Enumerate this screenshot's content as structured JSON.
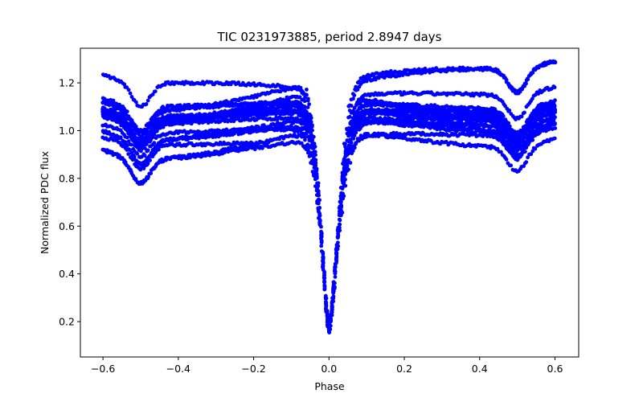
{
  "chart_data": {
    "type": "scatter",
    "title": "TIC 0231973885, period 2.8947 days",
    "xlabel": "Phase",
    "ylabel": "Normalized PDC flux",
    "xlim": [
      -0.66,
      0.663
    ],
    "ylim": [
      0.052,
      1.345
    ],
    "xticks": [
      -0.6,
      -0.4,
      -0.2,
      0.0,
      0.2,
      0.4,
      0.6
    ],
    "xtick_labels": [
      "−0.6",
      "−0.4",
      "−0.2",
      "0.0",
      "0.2",
      "0.4",
      "0.6"
    ],
    "yticks": [
      0.2,
      0.4,
      0.6,
      0.8,
      1.0,
      1.2
    ],
    "ytick_labels": [
      "0.2",
      "0.4",
      "0.6",
      "0.8",
      "1.0",
      "1.2"
    ],
    "grid": false,
    "legend": null,
    "marker_color": "#0000ff",
    "marker_size": 4,
    "description": "Phase-folded eclipsing-binary light curve: many overlapping traces with baseline flux ~0.85-1.28, a secondary dip near phase ±0.5 (~0.8-1.0) and a deep primary eclipse at phase 0.0 reaching ~0.11.",
    "key_points": [
      {
        "phase": -0.6,
        "flux_range": [
          0.97,
          1.28
        ]
      },
      {
        "phase": -0.5,
        "flux_range": [
          0.79,
          1.05
        ]
      },
      {
        "phase": -0.4,
        "flux_range": [
          0.88,
          1.17
        ]
      },
      {
        "phase": -0.2,
        "flux_range": [
          0.86,
          1.2
        ]
      },
      {
        "phase": -0.06,
        "flux_range": [
          1.0,
          1.21
        ]
      },
      {
        "phase": 0.0,
        "flux_range": [
          0.11,
          0.3
        ]
      },
      {
        "phase": 0.08,
        "flux_range": [
          0.92,
          1.23
        ]
      },
      {
        "phase": 0.2,
        "flux_range": [
          0.9,
          1.23
        ]
      },
      {
        "phase": 0.4,
        "flux_range": [
          0.96,
          1.28
        ]
      },
      {
        "phase": 0.5,
        "flux_range": [
          0.79,
          1.05
        ]
      },
      {
        "phase": 0.6,
        "flux_range": [
          0.88,
          1.18
        ]
      }
    ],
    "traces": [
      {
        "offset": 0.0,
        "tilt": 0.0,
        "extent": [
          -0.6,
          0.6
        ]
      },
      {
        "offset": 0.03,
        "tilt": 0.02,
        "extent": [
          -0.6,
          0.6
        ]
      },
      {
        "offset": -0.03,
        "tilt": -0.02,
        "extent": [
          -0.6,
          0.6
        ]
      },
      {
        "offset": 0.06,
        "tilt": 0.05,
        "extent": [
          -0.6,
          0.6
        ]
      },
      {
        "offset": -0.05,
        "tilt": 0.03,
        "extent": [
          -0.6,
          0.6
        ]
      },
      {
        "offset": 0.02,
        "tilt": -0.04,
        "extent": [
          -0.6,
          0.6
        ]
      },
      {
        "offset": -0.02,
        "tilt": 0.06,
        "extent": [
          -0.6,
          0.6
        ]
      },
      {
        "offset": 0.04,
        "tilt": -0.01,
        "extent": [
          -0.6,
          0.6
        ]
      },
      {
        "offset": 0.01,
        "tilt": 0.01,
        "extent": [
          -0.6,
          0.6
        ]
      },
      {
        "offset": -0.01,
        "tilt": -0.03,
        "extent": [
          -0.6,
          0.6
        ]
      },
      {
        "offset": 0.13,
        "tilt": 0.09,
        "extent": [
          -0.6,
          0.6
        ]
      },
      {
        "offset": 0.1,
        "tilt": 0.12,
        "extent": [
          -0.6,
          0.6
        ]
      },
      {
        "offset": -0.08,
        "tilt": -0.03,
        "extent": [
          -0.6,
          0.6
        ]
      },
      {
        "offset": -0.11,
        "tilt": 0.05,
        "extent": [
          -0.6,
          0.6
        ]
      },
      {
        "offset": -0.15,
        "tilt": -0.05,
        "extent": [
          -0.6,
          -0.2
        ]
      },
      {
        "offset": 0.08,
        "tilt": -0.08,
        "extent": [
          -0.6,
          0.6
        ]
      },
      {
        "offset": -0.07,
        "tilt": 0.09,
        "extent": [
          -0.6,
          0.6
        ]
      }
    ]
  }
}
